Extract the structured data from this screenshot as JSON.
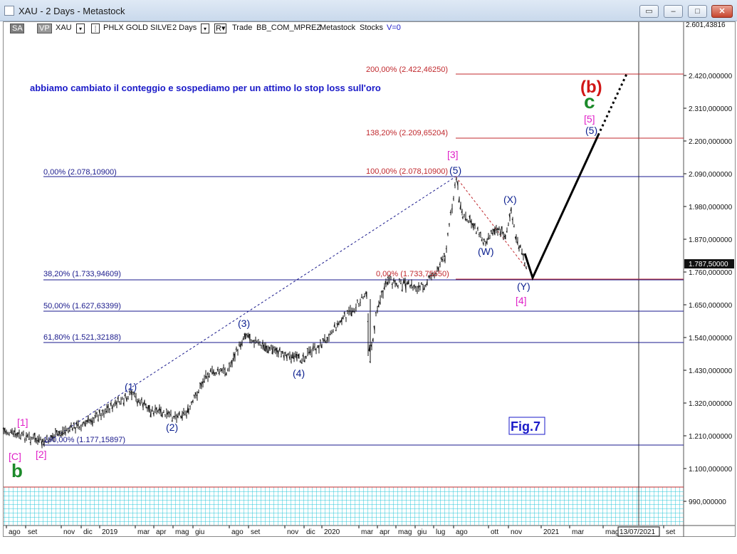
{
  "window": {
    "title": "XAU - 2 Days - Metastock",
    "buttons": [
      "restore-all",
      "minimize",
      "maximize",
      "close"
    ]
  },
  "toolbar": {
    "sa": "SA",
    "vp": "VP",
    "symbol": "XAU",
    "security": "PHLX GOLD SILVE",
    "period": "2 Days",
    "r": "R",
    "mode": "Trade",
    "template": "BB_COM_MPREZ",
    "source": "Metastock",
    "type": "Stocks",
    "v": "V=0"
  },
  "annotation": "abbiamo cambiato il conteggio e sospediamo per un attimo lo stop loss sull'oro",
  "figure_label": "Fig.7",
  "price_axis": {
    "top_partial": "2.601,43816",
    "ticks": [
      "2.420,000000",
      "2.310,000000",
      "2.200,000000",
      "2.090,000000",
      "1.980,000000",
      "1.870,000000",
      "1.760,000000",
      "1.650,000000",
      "1.540,000000",
      "1.430,000000",
      "1.320,000000",
      "1.210,000000",
      "1.100,000000",
      "990,000000"
    ],
    "current": "1.787,50000"
  },
  "time_axis": {
    "labels": [
      "ago",
      "set",
      "nov",
      "dic",
      "2019",
      "mar",
      "apr",
      "mag",
      "giu",
      "ago",
      "set",
      "nov",
      "dic",
      "2020",
      "mar",
      "apr",
      "mag",
      "giu",
      "lug",
      "ago",
      "ott",
      "nov",
      "2021",
      "mar",
      "mag",
      "set"
    ],
    "cursor_date": "13/07/2021"
  },
  "fib_levels": [
    {
      "text": "0,00% (2.078,10900)",
      "color": "#1a1a8c"
    },
    {
      "text": "38,20% (1.733,94609)",
      "color": "#1a1a8c"
    },
    {
      "text": "50,00% (1.627,63399)",
      "color": "#1a1a8c"
    },
    {
      "text": "61,80% (1.521,32188)",
      "color": "#1a1a8c"
    },
    {
      "text": "100,00% (1.177,15897)",
      "color": "#1a1a8c"
    },
    {
      "text": "200,00% (2.422,46250)",
      "color": "#c0282d"
    },
    {
      "text": "138,20% (2.209,65204)",
      "color": "#c0282d"
    },
    {
      "text": "100,00% (2.078,10900)",
      "color": "#c0282d"
    },
    {
      "text": "0,00% (1.733,75550)",
      "color": "#c0282d"
    }
  ],
  "wave_labels": {
    "w1": "(1)",
    "w2": "(2)",
    "w3": "(3)",
    "w4": "(4)",
    "w5": "(5)",
    "wW": "(W)",
    "wX": "(X)",
    "wY": "(Y)",
    "w5_target": "(5)",
    "m1": "[1]",
    "m2": "[2]",
    "m3": "[3]",
    "m4": "[4]",
    "m5": "[5]",
    "mC": "[C]",
    "b_small": "b",
    "c_big": "c",
    "b_paren": "(b)"
  },
  "colors": {
    "fib_blue": "#1a1a8c",
    "fib_red": "#c0282d",
    "wave_blue": "#0b1f8f",
    "magenta": "#e020c8",
    "green": "#1c8a2a",
    "red": "#d11616",
    "grid_cyan": "#29c7d8"
  }
}
